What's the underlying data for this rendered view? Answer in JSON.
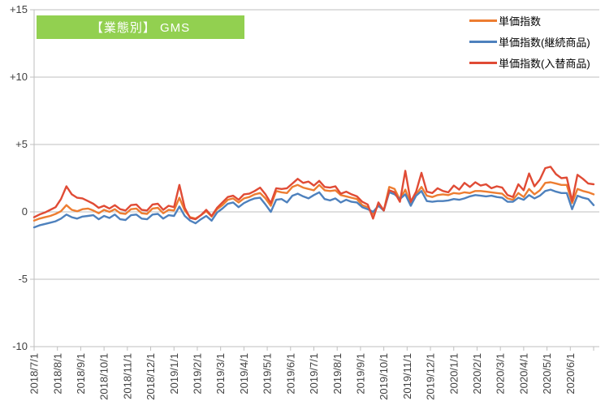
{
  "title_badge": {
    "text": "【業態別】 GMS",
    "bg_color": "#92D050",
    "text_color": "#FFFFFF"
  },
  "colors": {
    "gridline": "#BFBFBF",
    "axis_text": "#404040",
    "background": "#FFFFFF"
  },
  "chart_data": {
    "type": "line",
    "title": "【業態別】 GMS",
    "grid": "horizontal",
    "legend_position": "top-right",
    "sampling": "weekly points, monthly axis labels",
    "ylim": [
      -10,
      15
    ],
    "y_tick_values": [
      15,
      10,
      5,
      0,
      -5,
      -10
    ],
    "y_tick_labels": [
      "+15",
      "+10",
      "+5",
      "0",
      "-5",
      "-10"
    ],
    "x_tick_labels": [
      "2018/7/1",
      "2018/8/1",
      "2018/9/1",
      "2018/10/1",
      "2018/11/1",
      "2018/12/1",
      "2019/1/1",
      "2019/2/1",
      "2019/3/1",
      "2019/4/1",
      "2019/5/1",
      "2019/6/1",
      "2019/7/1",
      "2019/8/1",
      "2019/9/1",
      "2019/10/1",
      "2019/11/1",
      "2019/12/1",
      "2020/1/1",
      "2020/2/1",
      "2020/3/1",
      "2020/4/1",
      "2020/5/1",
      "2020/6/1"
    ],
    "series": [
      {
        "name": "単価指数",
        "color": "#ED7D31",
        "values": [
          -0.65,
          -0.5,
          -0.4,
          -0.3,
          -0.15,
          0.05,
          0.5,
          0.15,
          0.05,
          0.2,
          0.25,
          0.1,
          -0.1,
          0.15,
          0.0,
          0.2,
          -0.1,
          -0.15,
          0.2,
          0.25,
          -0.1,
          -0.15,
          0.25,
          0.3,
          -0.1,
          0.15,
          0.1,
          1.05,
          0.1,
          -0.4,
          -0.5,
          -0.25,
          0.05,
          -0.35,
          0.2,
          0.5,
          0.9,
          1.0,
          0.7,
          1.0,
          1.1,
          1.3,
          1.4,
          1.0,
          0.45,
          1.55,
          1.45,
          1.4,
          1.85,
          2.0,
          1.8,
          1.7,
          1.6,
          2.0,
          1.6,
          1.55,
          1.6,
          1.25,
          1.15,
          1.05,
          0.95,
          0.5,
          0.35,
          -0.15,
          0.5,
          0.1,
          1.85,
          1.7,
          0.9,
          1.65,
          0.55,
          1.3,
          1.85,
          1.2,
          1.1,
          1.25,
          1.3,
          1.25,
          1.4,
          1.35,
          1.45,
          1.4,
          1.55,
          1.55,
          1.5,
          1.45,
          1.4,
          1.35,
          1.0,
          0.9,
          1.4,
          1.1,
          1.7,
          1.3,
          1.6,
          2.15,
          2.2,
          2.1,
          2.0,
          2.0,
          0.65,
          1.7,
          1.55,
          1.45,
          1.3
        ]
      },
      {
        "name": "単価指数(継続商品)",
        "color": "#4E81BD",
        "values": [
          -1.15,
          -1.0,
          -0.9,
          -0.8,
          -0.7,
          -0.5,
          -0.2,
          -0.4,
          -0.5,
          -0.35,
          -0.3,
          -0.25,
          -0.55,
          -0.3,
          -0.45,
          -0.2,
          -0.55,
          -0.6,
          -0.25,
          -0.2,
          -0.5,
          -0.55,
          -0.2,
          -0.15,
          -0.5,
          -0.25,
          -0.3,
          0.4,
          -0.3,
          -0.65,
          -0.85,
          -0.55,
          -0.3,
          -0.65,
          -0.05,
          0.25,
          0.6,
          0.7,
          0.35,
          0.65,
          0.85,
          1.0,
          1.05,
          0.55,
          0.0,
          0.9,
          0.95,
          0.7,
          1.2,
          1.35,
          1.15,
          1.0,
          1.25,
          1.45,
          0.95,
          0.85,
          1.0,
          0.7,
          0.9,
          0.75,
          0.7,
          0.35,
          0.2,
          0.0,
          0.45,
          0.1,
          1.45,
          1.3,
          0.95,
          1.3,
          0.45,
          1.2,
          1.55,
          0.8,
          0.75,
          0.8,
          0.8,
          0.85,
          0.95,
          0.9,
          1.0,
          1.15,
          1.25,
          1.2,
          1.15,
          1.2,
          1.1,
          1.05,
          0.75,
          0.75,
          1.05,
          0.9,
          1.25,
          1.0,
          1.2,
          1.55,
          1.65,
          1.5,
          1.4,
          1.4,
          0.2,
          1.2,
          1.05,
          0.95,
          0.5
        ]
      },
      {
        "name": "単価指数(入替商品)",
        "color": "#E04B35",
        "values": [
          -0.4,
          -0.2,
          -0.05,
          0.15,
          0.35,
          0.95,
          1.9,
          1.3,
          1.05,
          1.0,
          0.8,
          0.6,
          0.3,
          0.45,
          0.25,
          0.5,
          0.2,
          0.1,
          0.5,
          0.55,
          0.15,
          0.1,
          0.55,
          0.6,
          0.15,
          0.45,
          0.35,
          2.0,
          0.3,
          -0.45,
          -0.55,
          -0.25,
          0.15,
          -0.3,
          0.3,
          0.7,
          1.1,
          1.2,
          0.9,
          1.3,
          1.35,
          1.55,
          1.8,
          1.3,
          0.65,
          1.75,
          1.7,
          1.75,
          2.1,
          2.45,
          2.15,
          2.25,
          1.95,
          2.3,
          1.85,
          1.8,
          1.9,
          1.35,
          1.5,
          1.3,
          1.15,
          0.75,
          0.55,
          -0.5,
          0.7,
          0.1,
          1.6,
          1.45,
          0.75,
          3.05,
          0.75,
          1.5,
          2.9,
          1.5,
          1.4,
          1.75,
          1.55,
          1.45,
          1.95,
          1.65,
          2.15,
          1.85,
          2.2,
          1.95,
          2.05,
          1.75,
          1.9,
          1.8,
          1.25,
          1.1,
          2.05,
          1.6,
          2.85,
          1.9,
          2.4,
          3.25,
          3.35,
          2.8,
          2.5,
          2.55,
          0.8,
          2.75,
          2.45,
          2.1,
          2.05
        ]
      }
    ]
  }
}
